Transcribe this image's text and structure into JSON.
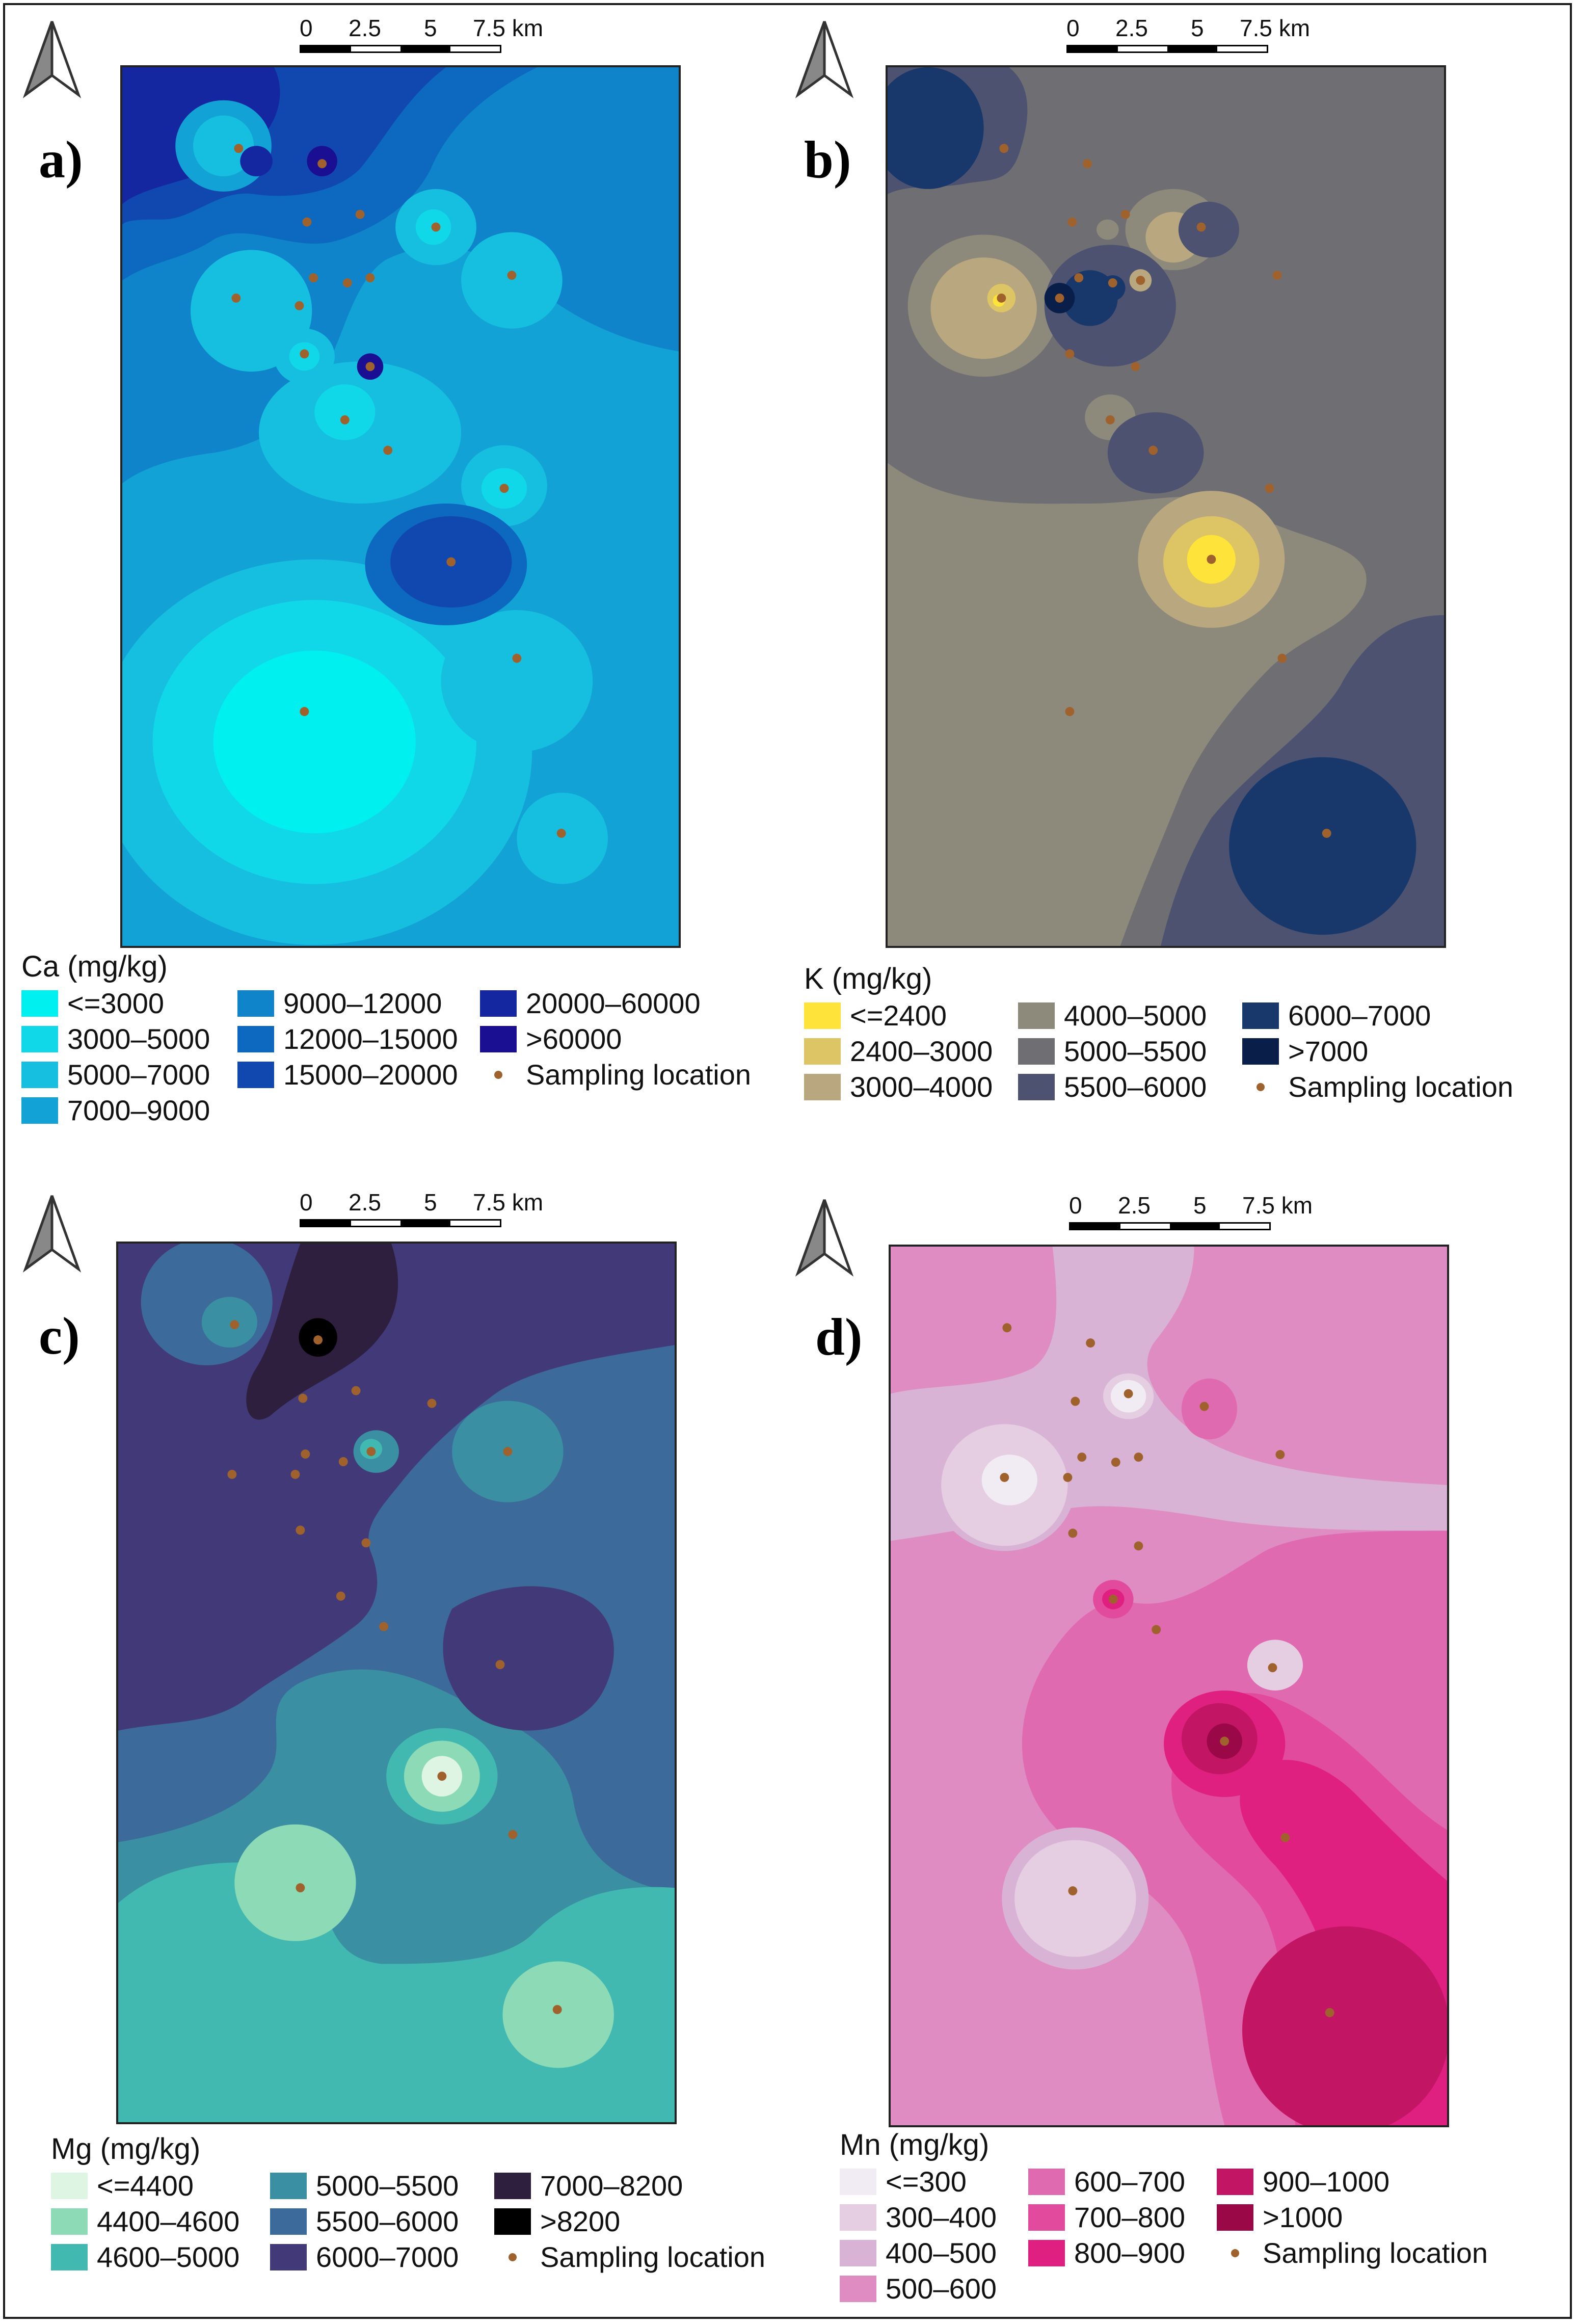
{
  "scale_bar": {
    "labels": [
      "0",
      "2.5",
      "5",
      "7.5 km"
    ]
  },
  "sampling_dot_color": "#a0622d",
  "panels": [
    {
      "label": "a)",
      "legend": {
        "title": "Ca (mg/kg)",
        "classes": [
          {
            "label": "<=3000",
            "color": "#00f0f0"
          },
          {
            "label": "3000–5000",
            "color": "#10d8e8"
          },
          {
            "label": "5000–7000",
            "color": "#16bfe0"
          },
          {
            "label": "7000–9000",
            "color": "#12a2d6"
          },
          {
            "label": "9000–12000",
            "color": "#0f84cb"
          },
          {
            "label": "12000–15000",
            "color": "#0d68c0"
          },
          {
            "label": "15000–20000",
            "color": "#1148b0"
          },
          {
            "label": "20000–60000",
            "color": "#1426a0"
          },
          {
            "label": ">60000",
            "color": "#1a0f92"
          }
        ],
        "sampling_label": "Sampling location"
      }
    },
    {
      "label": "b)",
      "legend": {
        "title": "K (mg/kg)",
        "classes": [
          {
            "label": "<=2400",
            "color": "#fde33a"
          },
          {
            "label": "2400–3000",
            "color": "#ddc465"
          },
          {
            "label": "3000–4000",
            "color": "#b8a77f"
          },
          {
            "label": "4000–5000",
            "color": "#8e8a7b"
          },
          {
            "label": "5000–5500",
            "color": "#6f6f73"
          },
          {
            "label": "5500–6000",
            "color": "#4c5270"
          },
          {
            "label": "6000–7000",
            "color": "#18386b"
          },
          {
            "label": ">7000",
            "color": "#0a1e4a"
          }
        ],
        "sampling_label": "Sampling location"
      }
    },
    {
      "label": "c)",
      "legend": {
        "title": "Mg (mg/kg)",
        "classes": [
          {
            "label": "<=4400",
            "color": "#dff5e4"
          },
          {
            "label": "4400–4600",
            "color": "#8cdbb6"
          },
          {
            "label": "4600–5000",
            "color": "#42b9b0"
          },
          {
            "label": "5000–5500",
            "color": "#3a8fa2"
          },
          {
            "label": "5500–6000",
            "color": "#3c6a9a"
          },
          {
            "label": "6000–7000",
            "color": "#423a78"
          },
          {
            "label": "7000–8200",
            "color": "#2e1f3e"
          },
          {
            "label": ">8200",
            "color": "#000000"
          }
        ],
        "sampling_label": "Sampling location"
      }
    },
    {
      "label": "d)",
      "legend": {
        "title": "Mn (mg/kg)",
        "classes": [
          {
            "label": "<=300",
            "color": "#f1ebf3"
          },
          {
            "label": "300–400",
            "color": "#e5cde2"
          },
          {
            "label": "400–500",
            "color": "#d9b3d6"
          },
          {
            "label": "500–600",
            "color": "#df8cc2"
          },
          {
            "label": "600–700",
            "color": "#e06ab0"
          },
          {
            "label": "700–800",
            "color": "#e24b9d"
          },
          {
            "label": "800–900",
            "color": "#e02080"
          },
          {
            "label": "900–1000",
            "color": "#c21664"
          },
          {
            "label": ">1000",
            "color": "#9a0848"
          }
        ],
        "sampling_label": "Sampling location"
      }
    }
  ]
}
